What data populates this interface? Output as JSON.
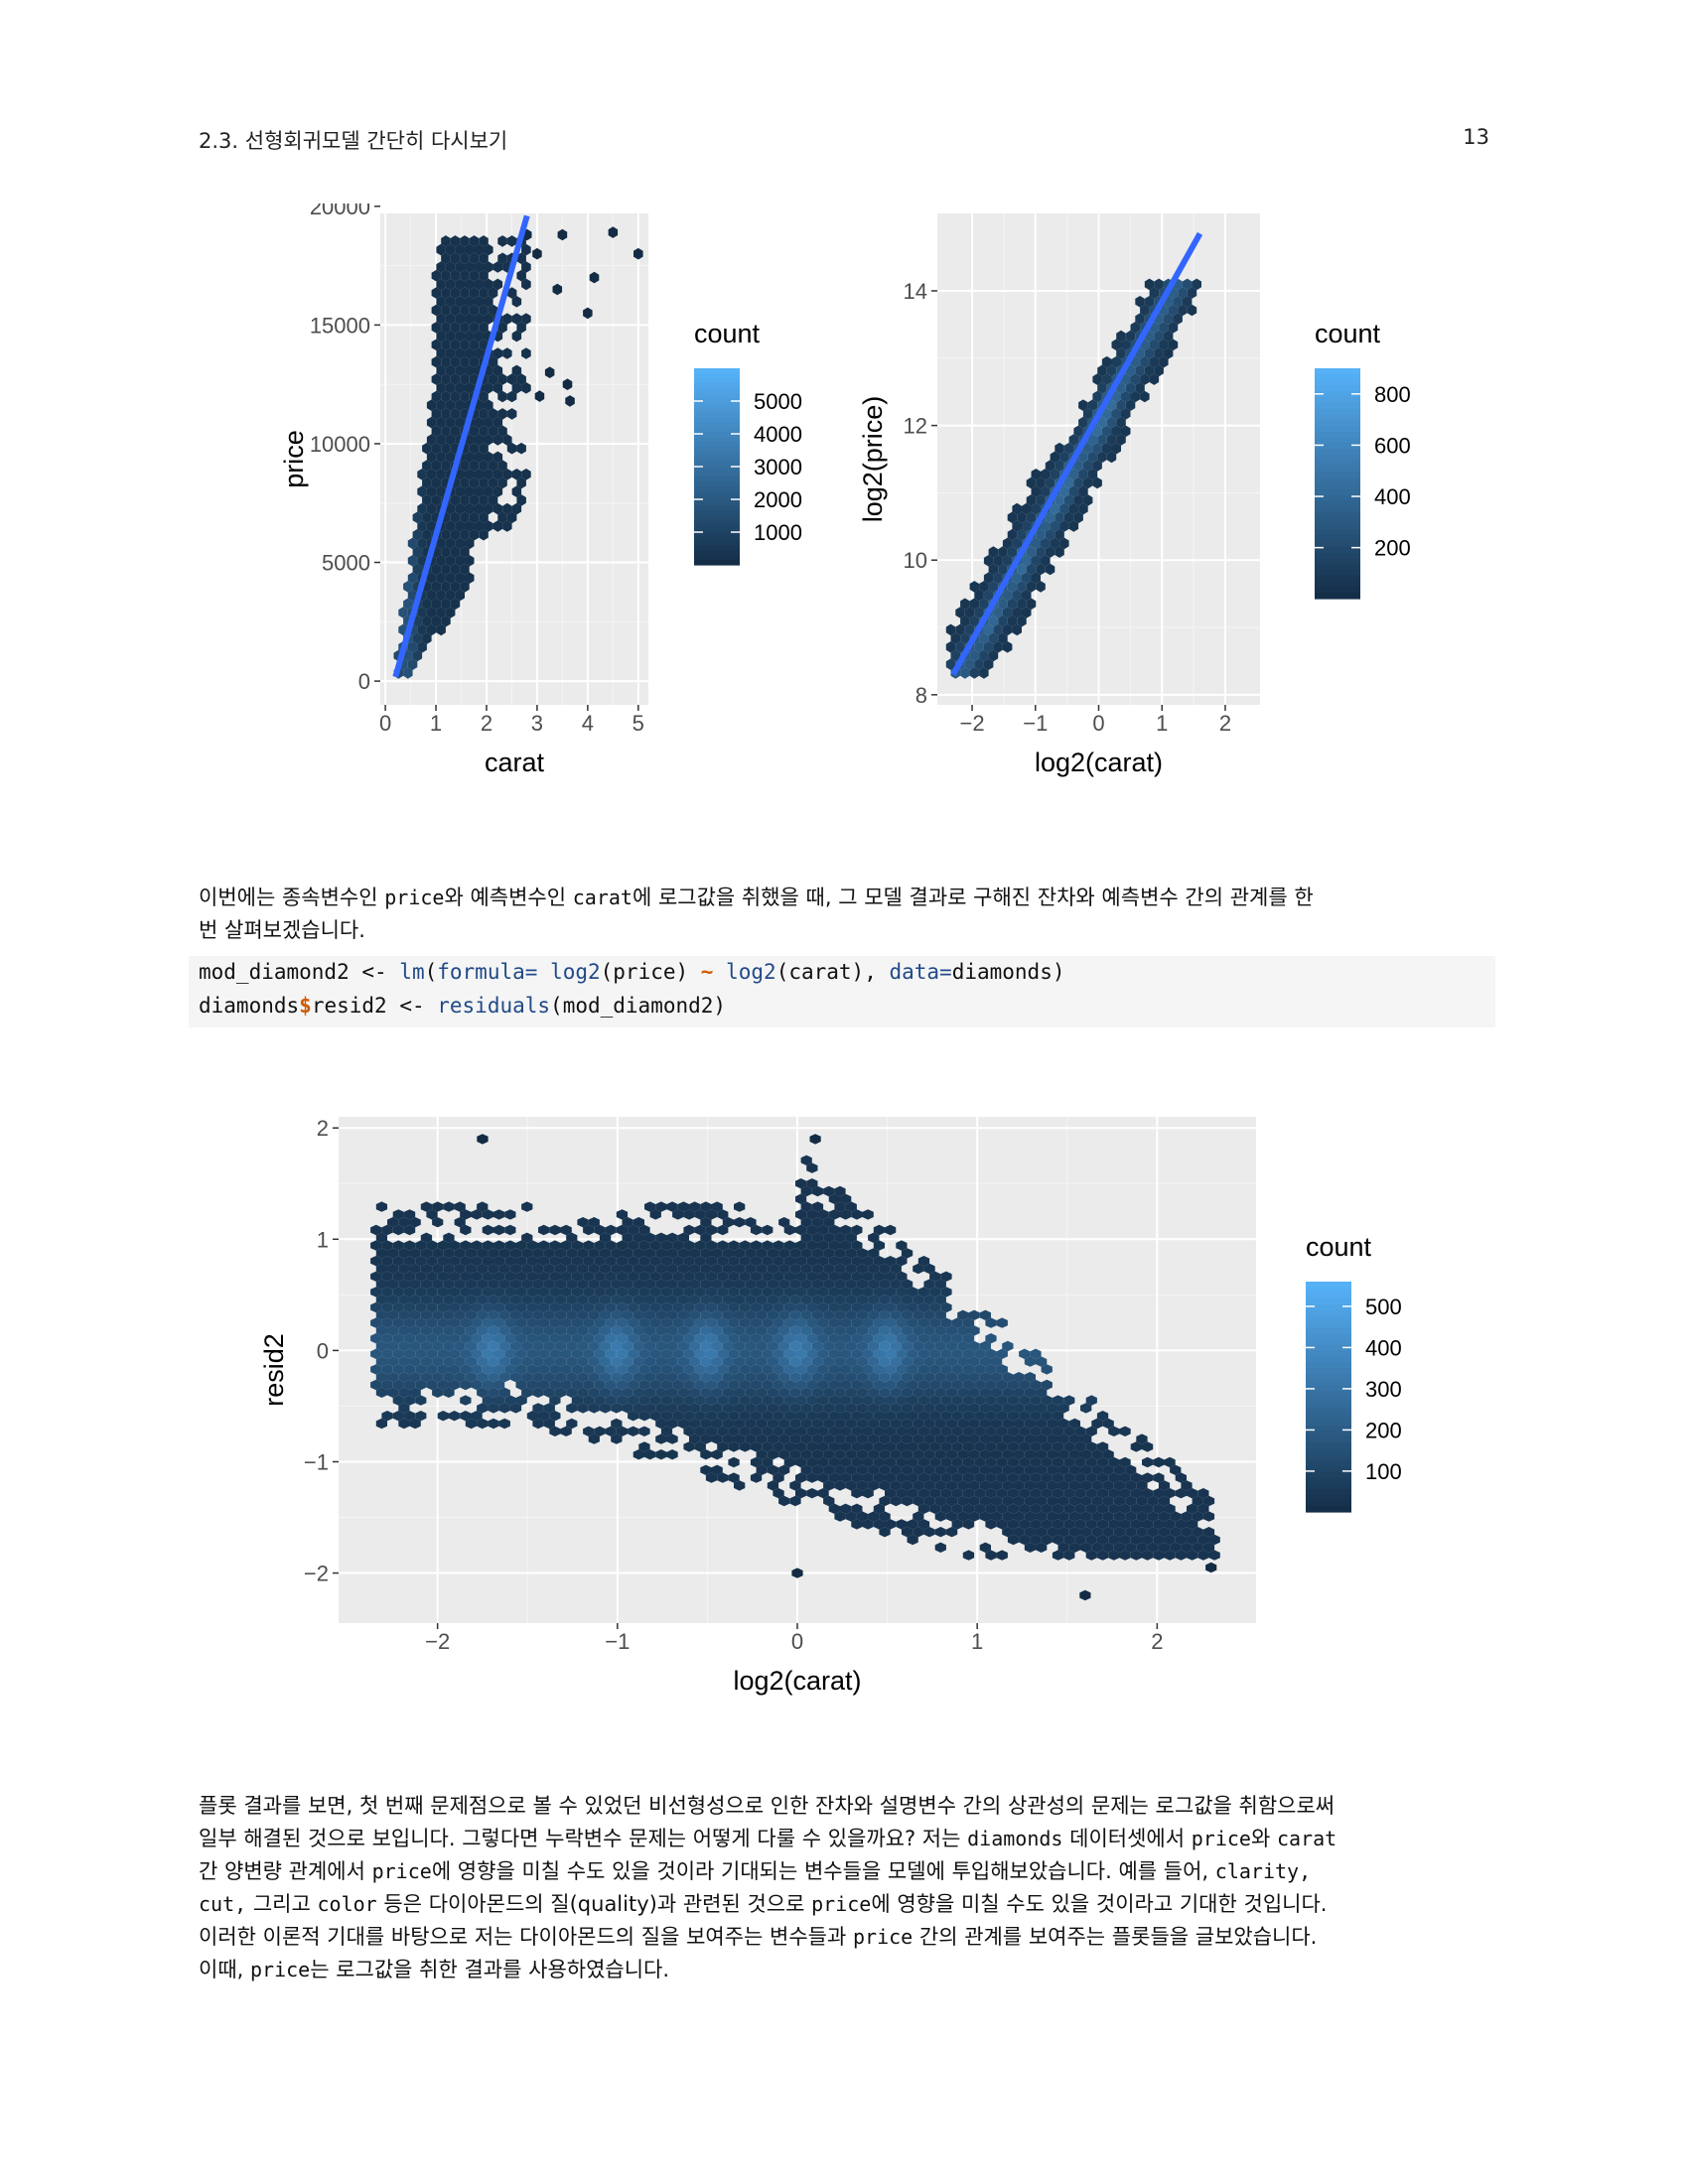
{
  "header": {
    "section": "2.3.  선형회귀모델 간단히 다시보기",
    "page_number": "13"
  },
  "colors": {
    "panel": "#ebebeb",
    "grid": "#ffffff",
    "fit_line": "#3366ff",
    "low": "#132b43",
    "high": "#56b1f7"
  },
  "paragraph1": {
    "line1": [
      {
        "t": "이번에는 종속변수인 "
      },
      {
        "t": "price",
        "code": true
      },
      {
        "t": "와 예측변수인 "
      },
      {
        "t": "carat",
        "code": true
      },
      {
        "t": "에 로그값을 취했을 때, 그 모델 결과로 구해진 잔차와 예측변수 간의 관계를 한"
      }
    ],
    "line2": [
      {
        "t": "번 살펴보겠습니다."
      }
    ]
  },
  "code": {
    "line1": [
      {
        "t": "mod_diamond2 <- "
      },
      {
        "t": "lm",
        "k": "kw"
      },
      {
        "t": "("
      },
      {
        "t": "formula=",
        "k": "kw"
      },
      {
        "t": " "
      },
      {
        "t": "log2",
        "k": "kw"
      },
      {
        "t": "(price) "
      },
      {
        "t": "~",
        "k": "op"
      },
      {
        "t": " "
      },
      {
        "t": "log2",
        "k": "kw"
      },
      {
        "t": "(carat), "
      },
      {
        "t": "data=",
        "k": "kw"
      },
      {
        "t": "diamonds)"
      }
    ],
    "line2": [
      {
        "t": "diamonds"
      },
      {
        "t": "$",
        "k": "op"
      },
      {
        "t": "resid2 <- "
      },
      {
        "t": "residuals",
        "k": "kw"
      },
      {
        "t": "(mod_diamond2)"
      }
    ]
  },
  "paragraph2": {
    "lines": [
      [
        {
          "t": "플롯 결과를 보면, 첫 번째 문제점으로 볼 수 있었던 비선형성으로 인한 잔차와 설명변수 간의 상관성의 문제는 로그값을 취함으로써"
        }
      ],
      [
        {
          "t": "일부 해결된 것으로 보입니다. 그렇다면 누락변수 문제는 어떻게 다룰 수 있을까요? 저는 "
        },
        {
          "t": "diamonds",
          "code": true
        },
        {
          "t": " 데이터셋에서 "
        },
        {
          "t": "price",
          "code": true
        },
        {
          "t": "와 "
        },
        {
          "t": "carat",
          "code": true
        }
      ],
      [
        {
          "t": "간 양변량 관계에서 "
        },
        {
          "t": "price",
          "code": true
        },
        {
          "t": "에 영향을 미칠 수도 있을 것이라 기대되는 변수들을 모델에 투입해보았습니다. 예를 들어, "
        },
        {
          "t": "clarity,",
          "code": true
        }
      ],
      [
        {
          "t": "cut,",
          "code": true
        },
        {
          "t": " 그리고 "
        },
        {
          "t": "color",
          "code": true
        },
        {
          "t": " 등은 다이아몬드의 질(quality)과 관련된 것으로 "
        },
        {
          "t": "price",
          "code": true
        },
        {
          "t": "에 영향을 미칠 수도 있을 것이라고 기대한 것입니다."
        }
      ],
      [
        {
          "t": "이러한 이론적 기대를 바탕으로 저는 다이아몬드의 질을 보여주는 변수들과 "
        },
        {
          "t": "price",
          "code": true
        },
        {
          "t": " 간의 관계를 보여주는 플롯들을 글보았습니다."
        }
      ],
      [
        {
          "t": "이때, "
        },
        {
          "t": "price",
          "code": true
        },
        {
          "t": "는 로그값을 취한 결과를 사용하였습니다."
        }
      ]
    ]
  },
  "chart_data": [
    {
      "type": "hexbin",
      "xlabel": "carat",
      "ylabel": "price",
      "xlim": [
        -0.1,
        5.2
      ],
      "ylim": [
        -1000,
        19700
      ],
      "x_ticks": [
        0,
        1,
        2,
        3,
        4,
        5
      ],
      "y_ticks": [
        0,
        5000,
        10000,
        15000,
        20000
      ],
      "x_tick_labels": [
        "0",
        "1",
        "2",
        "3",
        "4",
        "5"
      ],
      "y_tick_labels": [
        "0",
        "5000",
        "10000",
        "15000",
        "20000"
      ],
      "fit_line": {
        "x": [
          0.2,
          2.8
        ],
        "y": [
          180,
          19600
        ]
      },
      "legend": {
        "title": "count",
        "min": 1,
        "max": 6000,
        "breaks": [
          1000,
          2000,
          3000,
          4000,
          5000
        ],
        "break_labels": [
          "1000",
          "2000",
          "3000",
          "4000",
          "5000"
        ]
      },
      "outliers": [
        [
          2.8,
          18800
        ],
        [
          3.0,
          18000
        ],
        [
          3.5,
          18800
        ],
        [
          4.5,
          18900
        ],
        [
          5.0,
          18000
        ],
        [
          4.13,
          17000
        ],
        [
          3.4,
          16500
        ],
        [
          4.0,
          15500
        ],
        [
          3.25,
          13000
        ],
        [
          3.6,
          12500
        ],
        [
          3.65,
          11800
        ],
        [
          3.05,
          12000
        ]
      ]
    },
    {
      "type": "hexbin",
      "xlabel": "log2(carat)",
      "ylabel": "log2(price)",
      "xlim": [
        -2.55,
        2.55
      ],
      "ylim": [
        7.85,
        15.15
      ],
      "x_ticks": [
        -2,
        -1,
        0,
        1,
        2
      ],
      "y_ticks": [
        8,
        10,
        12,
        14
      ],
      "x_tick_labels": [
        "−2",
        "−1",
        "0",
        "1",
        "2"
      ],
      "y_tick_labels": [
        "8",
        "10",
        "12",
        "14"
      ],
      "fit_line": {
        "x": [
          -2.3,
          1.6
        ],
        "y": [
          8.3,
          14.85
        ]
      },
      "legend": {
        "title": "count",
        "min": 1,
        "max": 900,
        "breaks": [
          200,
          400,
          600,
          800
        ],
        "break_labels": [
          "200",
          "400",
          "600",
          "800"
        ]
      }
    },
    {
      "type": "hexbin",
      "xlabel": "log2(carat)",
      "ylabel": "resid2",
      "xlim": [
        -2.55,
        2.55
      ],
      "ylim": [
        -2.45,
        2.1
      ],
      "x_ticks": [
        -2,
        -1,
        0,
        1,
        2
      ],
      "y_ticks": [
        -2,
        -1,
        0,
        1,
        2
      ],
      "x_tick_labels": [
        "−2",
        "−1",
        "0",
        "1",
        "2"
      ],
      "y_tick_labels": [
        "−2",
        "−1",
        "0",
        "1",
        "2"
      ],
      "legend": {
        "title": "count",
        "min": 1,
        "max": 560,
        "breaks": [
          100,
          200,
          300,
          400,
          500
        ],
        "break_labels": [
          "100",
          "200",
          "300",
          "400",
          "500"
        ]
      },
      "outliers": [
        [
          -1.75,
          1.9
        ],
        [
          0.0,
          -2.0
        ],
        [
          1.6,
          -2.2
        ],
        [
          2.3,
          -1.95
        ],
        [
          0.1,
          1.9
        ]
      ]
    }
  ]
}
